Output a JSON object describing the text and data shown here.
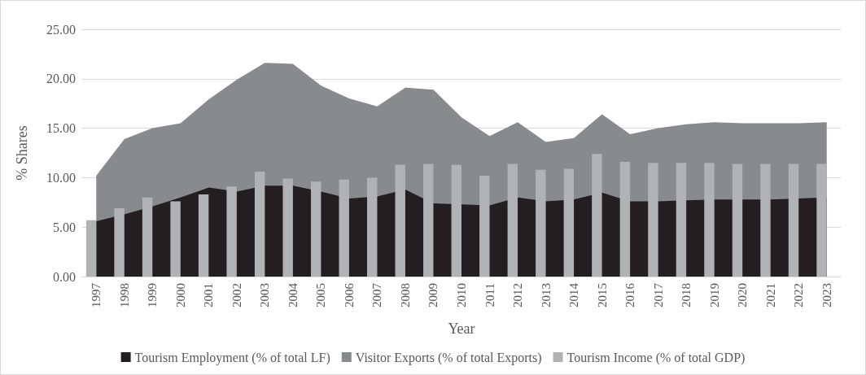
{
  "chart_data": {
    "type": "area",
    "xlabel": "Year",
    "ylabel": "% Shares",
    "categories": [
      "1997",
      "1998",
      "1999",
      "2000",
      "2001",
      "2002",
      "2003",
      "2004",
      "2005",
      "2006",
      "2007",
      "2008",
      "2009",
      "2010",
      "2011",
      "2012",
      "2013",
      "2014",
      "2015",
      "2016",
      "2017",
      "2018",
      "2019",
      "2020",
      "2021",
      "2022",
      "2023"
    ],
    "series": [
      {
        "name": "Tourism Employment (% of total LF)",
        "color": "#231f20",
        "values": [
          5.6,
          6.3,
          7.1,
          8.0,
          9.0,
          8.6,
          9.2,
          9.2,
          8.6,
          7.9,
          8.1,
          8.8,
          7.4,
          7.3,
          7.2,
          8.0,
          7.6,
          7.8,
          8.5,
          7.6,
          7.6,
          7.7,
          7.8,
          7.8,
          7.8,
          7.9,
          8.0
        ]
      },
      {
        "name": "Visitor Exports (% of total Exports)",
        "color": "#898a8d",
        "values": [
          10.2,
          13.9,
          15.0,
          15.5,
          17.9,
          19.9,
          21.6,
          21.5,
          19.3,
          18.0,
          17.2,
          19.1,
          18.9,
          16.1,
          14.2,
          15.6,
          13.6,
          14.0,
          16.4,
          14.4,
          15.0,
          15.4,
          15.6,
          15.5,
          15.5,
          15.5,
          15.6
        ]
      },
      {
        "name": "Tourism Income (% of total GDP)",
        "color": "#b1b2b5",
        "type": "bar",
        "values": [
          5.7,
          6.9,
          8.0,
          7.6,
          8.3,
          9.1,
          10.6,
          9.9,
          9.6,
          9.8,
          10.0,
          11.3,
          11.4,
          11.3,
          10.2,
          11.4,
          10.8,
          10.9,
          12.4,
          11.6,
          11.5,
          11.5,
          11.5,
          11.4,
          11.4,
          11.4,
          11.4
        ]
      }
    ],
    "ylim": [
      0,
      25
    ],
    "yticks": [
      {
        "value": 0,
        "label": "0.00"
      },
      {
        "value": 5,
        "label": "5.00"
      },
      {
        "value": 10,
        "label": "10.00"
      },
      {
        "value": 15,
        "label": "15.00"
      },
      {
        "value": 20,
        "label": "20.00"
      },
      {
        "value": 25,
        "label": "25.00"
      }
    ],
    "grid": "y",
    "legend": "bottom"
  }
}
